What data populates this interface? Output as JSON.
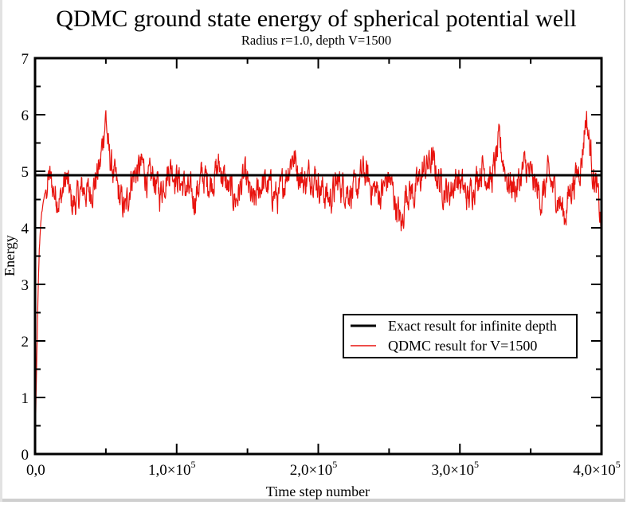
{
  "chart_data": {
    "type": "line",
    "title": "QDMC ground state energy of spherical potential well",
    "subtitle": "Radius r=1.0,  depth V=1500",
    "xlabel": "Time step number",
    "ylabel": "Energy",
    "xlim": [
      0,
      400000
    ],
    "ylim": [
      0,
      7
    ],
    "x_ticks": [
      0,
      100000,
      200000,
      300000,
      400000
    ],
    "x_tick_labels": [
      {
        "mant": "0,0",
        "exp": ""
      },
      {
        "mant": "1,0×10",
        "exp": "5"
      },
      {
        "mant": "2,0×10",
        "exp": "5"
      },
      {
        "mant": "3,0×10",
        "exp": "5"
      },
      {
        "mant": "4,0×10",
        "exp": "5"
      }
    ],
    "x_minor_ticks": [
      50000,
      150000,
      250000,
      350000
    ],
    "y_ticks": [
      0,
      1,
      2,
      3,
      4,
      5,
      6,
      7
    ],
    "y_tick_labels": [
      "0",
      "1",
      "2",
      "3",
      "4",
      "5",
      "6",
      "7"
    ],
    "y_minor_ticks": [
      0.5,
      1.5,
      2.5,
      3.5,
      4.5,
      5.5,
      6.5
    ],
    "grid": false,
    "legend_position": "center-right",
    "series": [
      {
        "name": "Exact result for infinite depth",
        "color": "#000000",
        "x": [
          0,
          400000
        ],
        "y": [
          4.93,
          4.93
        ]
      },
      {
        "name": "QDMC result for V=1500",
        "color": "#e8140f",
        "x": [
          0,
          1000,
          2000,
          3000,
          4000,
          6000,
          8000,
          10000,
          14000,
          18000,
          22000,
          26000,
          30000,
          34000,
          38000,
          42000,
          46000,
          48000,
          50000,
          52000,
          56000,
          60000,
          64000,
          68000,
          72000,
          76000,
          80000,
          84000,
          88000,
          92000,
          96000,
          100000,
          106000,
          112000,
          118000,
          124000,
          130000,
          136000,
          142000,
          148000,
          154000,
          160000,
          166000,
          172000,
          178000,
          182000,
          186000,
          190000,
          196000,
          202000,
          208000,
          214000,
          220000,
          226000,
          232000,
          238000,
          244000,
          250000,
          256000,
          259000,
          262000,
          268000,
          274000,
          280000,
          286000,
          292000,
          298000,
          302000,
          306000,
          310000,
          316000,
          322000,
          328000,
          334000,
          340000,
          346000,
          352000,
          358000,
          362000,
          366000,
          370000,
          374000,
          378000,
          382000,
          386000,
          389000,
          391000,
          394000,
          397000,
          400000
        ],
        "y": [
          0.0,
          1.4,
          2.7,
          3.6,
          4.1,
          4.5,
          4.7,
          4.9,
          4.6,
          4.5,
          4.9,
          4.4,
          4.5,
          4.7,
          4.6,
          4.8,
          5.1,
          5.6,
          6.0,
          5.3,
          4.9,
          4.5,
          4.3,
          4.9,
          5.0,
          5.1,
          4.8,
          4.9,
          4.6,
          4.9,
          5.1,
          4.9,
          4.7,
          4.5,
          4.9,
          4.8,
          5.1,
          4.7,
          4.5,
          4.9,
          4.4,
          4.8,
          4.7,
          4.5,
          5.0,
          5.3,
          5.0,
          4.8,
          5.0,
          4.7,
          4.5,
          4.8,
          4.7,
          4.6,
          5.0,
          4.7,
          4.6,
          4.9,
          4.3,
          4.0,
          4.7,
          4.6,
          5.0,
          5.2,
          4.8,
          4.6,
          4.9,
          4.7,
          4.5,
          4.8,
          5.1,
          4.8,
          5.5,
          4.8,
          4.7,
          5.1,
          4.8,
          4.5,
          4.9,
          4.7,
          4.5,
          4.2,
          4.7,
          4.9,
          5.2,
          6.0,
          5.6,
          5.0,
          4.6,
          4.0
        ]
      }
    ]
  }
}
